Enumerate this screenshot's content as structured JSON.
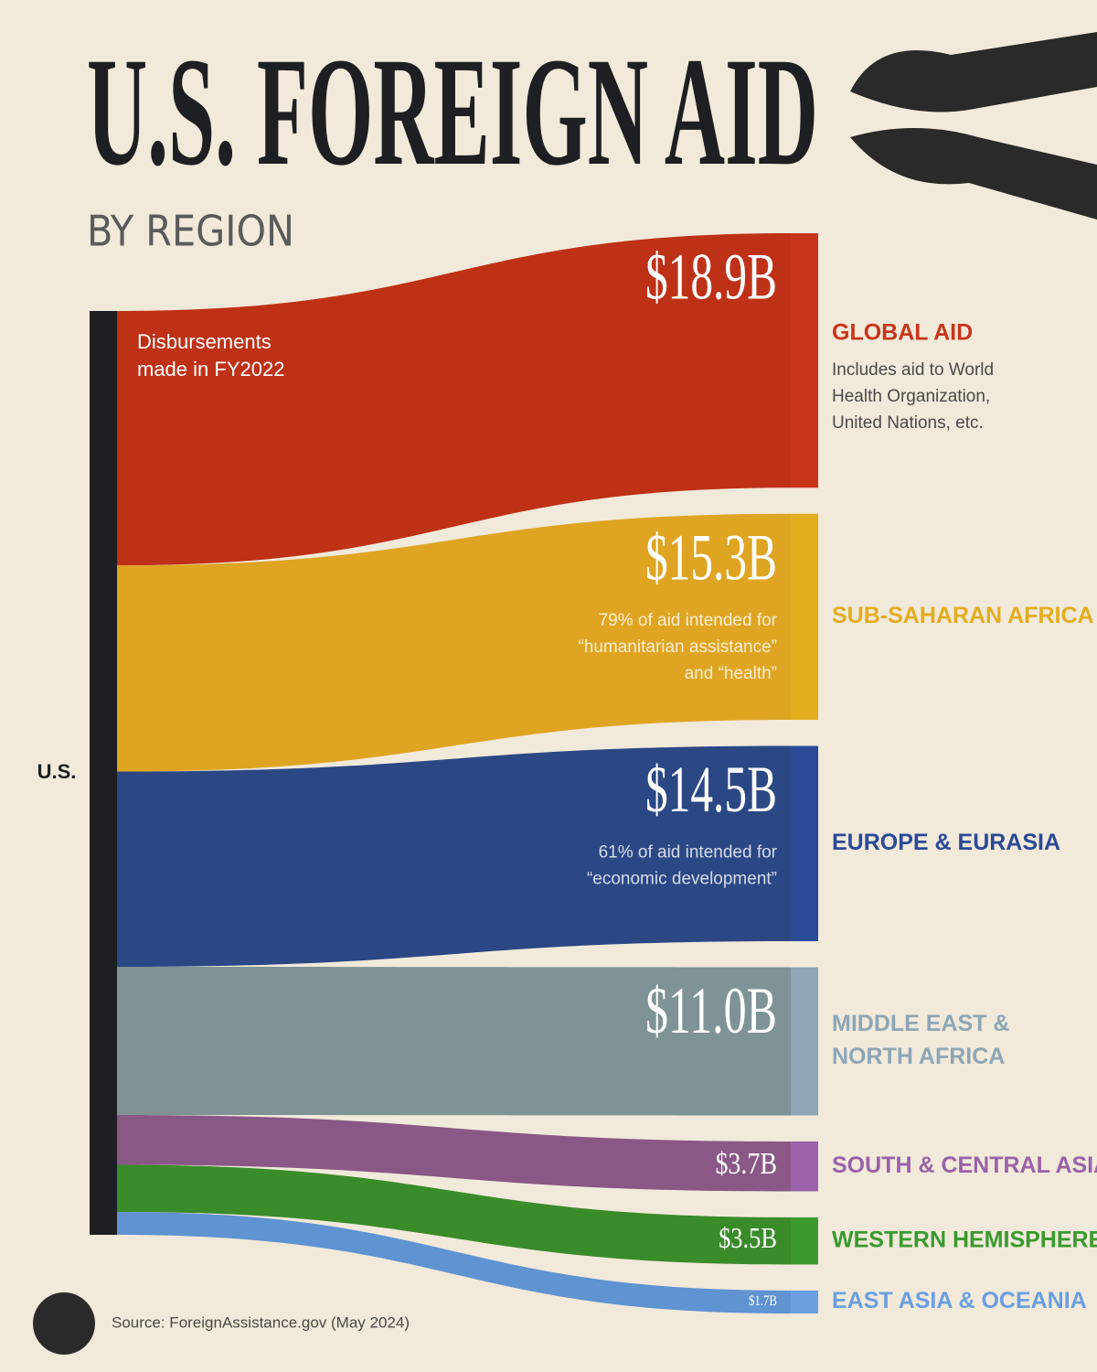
{
  "chart_data": {
    "type": "sankey",
    "title": "U.S. FOREIGN AID",
    "subtitle": "BY REGION",
    "annotation": [
      "Disbursements",
      "made in FY2022"
    ],
    "source": "U.S.",
    "flows": [
      {
        "target": [
          "GLOBAL AID"
        ],
        "value": 18.9,
        "value_label": "$18.9B",
        "color": "#bf3117",
        "label_color": "#c8351b",
        "description": [
          "Includes aid to World",
          "Health Organization,",
          "United Nations, etc."
        ]
      },
      {
        "target": [
          "SUB-SAHARAN AFRICA"
        ],
        "value": 15.3,
        "value_label": "$15.3B",
        "color": "#dfa522",
        "label_color": "#e3ad1e",
        "note": [
          "79% of aid intended for",
          "“humanitarian assistance”",
          "and “health”"
        ]
      },
      {
        "target": [
          "EUROPE & EURASIA"
        ],
        "value": 14.5,
        "value_label": "$14.5B",
        "color": "#2b4885",
        "label_color": "#2a4a96",
        "note": [
          "61% of aid intended for",
          "“economic development”"
        ]
      },
      {
        "target": [
          "MIDDLE EAST &",
          "NORTH AFRICA"
        ],
        "value": 11.0,
        "value_label": "$11.0B",
        "color": "#7e9395",
        "label_color": "#8ea6b6"
      },
      {
        "target": [
          "SOUTH & CENTRAL ASIA"
        ],
        "value": 3.7,
        "value_label": "$3.7B",
        "color": "#8a5886",
        "label_color": "#9a62a8"
      },
      {
        "target": [
          "WESTERN HEMISPHERE"
        ],
        "value": 3.5,
        "value_label": "$3.5B",
        "color": "#3a8c2a",
        "label_color": "#3a9a2e"
      },
      {
        "target": [
          "EAST ASIA & OCEANIA"
        ],
        "value": 1.7,
        "value_label": "$1.7B",
        "color": "#5f93d2",
        "label_color": "#6a9fe0"
      }
    ],
    "footer": "Source: ForeignAssistance.gov (May 2024)"
  }
}
